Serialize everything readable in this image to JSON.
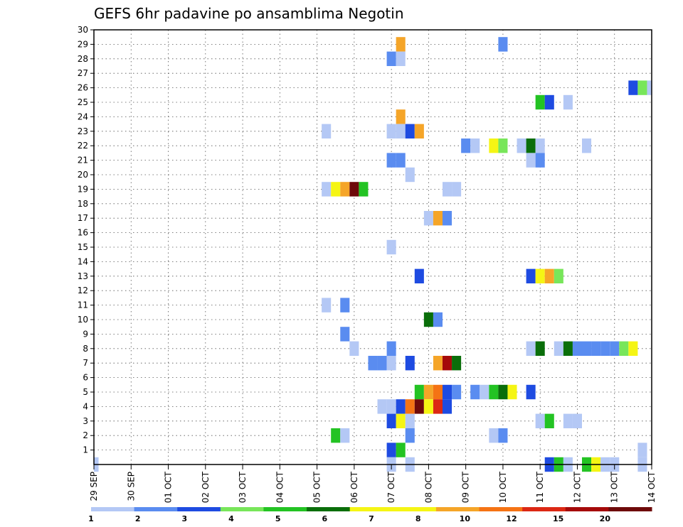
{
  "chart_data": {
    "type": "heatmap",
    "title": "GEFS 6hr padavine po ansamblima Negotin",
    "xlabel": "",
    "ylabel": "",
    "x_tick_labels": [
      "29 SEP",
      "30 SEP",
      "01 OCT",
      "02 OCT",
      "03 OCT",
      "04 OCT",
      "05 OCT",
      "06 OCT",
      "07 OCT",
      "08 OCT",
      "09 OCT",
      "10 OCT",
      "11 OCT",
      "12 OCT",
      "13 OCT",
      "14 OCT"
    ],
    "y_tick_labels": [
      "1",
      "2",
      "3",
      "4",
      "5",
      "6",
      "7",
      "8",
      "9",
      "10",
      "11",
      "12",
      "13",
      "14",
      "15",
      "16",
      "17",
      "18",
      "19",
      "20",
      "21",
      "22",
      "23",
      "24",
      "25",
      "26",
      "27",
      "28",
      "29",
      "30"
    ],
    "xlim": [
      0,
      60
    ],
    "ylim": [
      0,
      30
    ],
    "grid": true,
    "colorbar": {
      "position": "bottom",
      "labels": [
        "1",
        "2",
        "3",
        "4",
        "5",
        "6",
        "7",
        "8",
        "10",
        "12",
        "15",
        "20"
      ],
      "colors": [
        "#b4c8f5",
        "#5a8cf0",
        "#1e4be1",
        "#78e65a",
        "#23c323",
        "#0a6e0a",
        "#f5f514",
        "#f5f514",
        "#f5a528",
        "#f57314",
        "#dc2814",
        "#a50a0a",
        "#6e0a0a"
      ]
    },
    "cells": [
      {
        "x": 0,
        "y": 0,
        "level": 0
      },
      {
        "x": 33,
        "y": 29,
        "level": 8
      },
      {
        "x": 44,
        "y": 29,
        "level": 1
      },
      {
        "x": 32,
        "y": 28,
        "level": 1
      },
      {
        "x": 33,
        "y": 28,
        "level": 0
      },
      {
        "x": 58,
        "y": 26,
        "level": 2
      },
      {
        "x": 59,
        "y": 26,
        "level": 3
      },
      {
        "x": 60,
        "y": 26,
        "level": 0
      },
      {
        "x": 48,
        "y": 25,
        "level": 4
      },
      {
        "x": 49,
        "y": 25,
        "level": 2
      },
      {
        "x": 51,
        "y": 25,
        "level": 0
      },
      {
        "x": 33,
        "y": 24,
        "level": 8
      },
      {
        "x": 25,
        "y": 23,
        "level": 0
      },
      {
        "x": 32,
        "y": 23,
        "level": 0
      },
      {
        "x": 33,
        "y": 23,
        "level": 0
      },
      {
        "x": 34,
        "y": 23,
        "level": 2
      },
      {
        "x": 35,
        "y": 23,
        "level": 8
      },
      {
        "x": 40,
        "y": 22,
        "level": 1
      },
      {
        "x": 41,
        "y": 22,
        "level": 0
      },
      {
        "x": 43,
        "y": 22,
        "level": 6
      },
      {
        "x": 44,
        "y": 22,
        "level": 3
      },
      {
        "x": 46,
        "y": 22,
        "level": 0
      },
      {
        "x": 47,
        "y": 22,
        "level": 5
      },
      {
        "x": 48,
        "y": 22,
        "level": 0
      },
      {
        "x": 53,
        "y": 22,
        "level": 0
      },
      {
        "x": 32,
        "y": 21,
        "level": 1
      },
      {
        "x": 33,
        "y": 21,
        "level": 1
      },
      {
        "x": 47,
        "y": 21,
        "level": 0
      },
      {
        "x": 48,
        "y": 21,
        "level": 1
      },
      {
        "x": 34,
        "y": 20,
        "level": 0
      },
      {
        "x": 25,
        "y": 19,
        "level": 0
      },
      {
        "x": 26,
        "y": 19,
        "level": 6
      },
      {
        "x": 27,
        "y": 19,
        "level": 8
      },
      {
        "x": 28,
        "y": 19,
        "level": 12
      },
      {
        "x": 29,
        "y": 19,
        "level": 4
      },
      {
        "x": 38,
        "y": 19,
        "level": 0
      },
      {
        "x": 39,
        "y": 19,
        "level": 0
      },
      {
        "x": 36,
        "y": 17,
        "level": 0
      },
      {
        "x": 37,
        "y": 17,
        "level": 8
      },
      {
        "x": 38,
        "y": 17,
        "level": 1
      },
      {
        "x": 32,
        "y": 15,
        "level": 0
      },
      {
        "x": 35,
        "y": 13,
        "level": 2
      },
      {
        "x": 47,
        "y": 13,
        "level": 2
      },
      {
        "x": 48,
        "y": 13,
        "level": 6
      },
      {
        "x": 49,
        "y": 13,
        "level": 8
      },
      {
        "x": 50,
        "y": 13,
        "level": 3
      },
      {
        "x": 25,
        "y": 11,
        "level": 0
      },
      {
        "x": 27,
        "y": 11,
        "level": 1
      },
      {
        "x": 36,
        "y": 10,
        "level": 5
      },
      {
        "x": 37,
        "y": 10,
        "level": 1
      },
      {
        "x": 27,
        "y": 9,
        "level": 1
      },
      {
        "x": 28,
        "y": 8,
        "level": 0
      },
      {
        "x": 32,
        "y": 8,
        "level": 1
      },
      {
        "x": 47,
        "y": 8,
        "level": 0
      },
      {
        "x": 48,
        "y": 8,
        "level": 5
      },
      {
        "x": 50,
        "y": 8,
        "level": 0
      },
      {
        "x": 51,
        "y": 8,
        "level": 5
      },
      {
        "x": 52,
        "y": 8,
        "level": 1
      },
      {
        "x": 53,
        "y": 8,
        "level": 1
      },
      {
        "x": 54,
        "y": 8,
        "level": 1
      },
      {
        "x": 55,
        "y": 8,
        "level": 1
      },
      {
        "x": 56,
        "y": 8,
        "level": 1
      },
      {
        "x": 57,
        "y": 8,
        "level": 3
      },
      {
        "x": 58,
        "y": 8,
        "level": 6
      },
      {
        "x": 30,
        "y": 7,
        "level": 1
      },
      {
        "x": 31,
        "y": 7,
        "level": 1
      },
      {
        "x": 32,
        "y": 7,
        "level": 0
      },
      {
        "x": 34,
        "y": 7,
        "level": 2
      },
      {
        "x": 37,
        "y": 7,
        "level": 8
      },
      {
        "x": 38,
        "y": 7,
        "level": 11
      },
      {
        "x": 39,
        "y": 7,
        "level": 5
      },
      {
        "x": 35,
        "y": 5,
        "level": 4
      },
      {
        "x": 36,
        "y": 5,
        "level": 8
      },
      {
        "x": 37,
        "y": 5,
        "level": 9
      },
      {
        "x": 38,
        "y": 5,
        "level": 2
      },
      {
        "x": 39,
        "y": 5,
        "level": 1
      },
      {
        "x": 41,
        "y": 5,
        "level": 1
      },
      {
        "x": 42,
        "y": 5,
        "level": 0
      },
      {
        "x": 43,
        "y": 5,
        "level": 4
      },
      {
        "x": 44,
        "y": 5,
        "level": 5
      },
      {
        "x": 45,
        "y": 5,
        "level": 6
      },
      {
        "x": 47,
        "y": 5,
        "level": 2
      },
      {
        "x": 31,
        "y": 4,
        "level": 0
      },
      {
        "x": 32,
        "y": 4,
        "level": 0
      },
      {
        "x": 33,
        "y": 4,
        "level": 2
      },
      {
        "x": 34,
        "y": 4,
        "level": 9
      },
      {
        "x": 35,
        "y": 4,
        "level": 12
      },
      {
        "x": 36,
        "y": 4,
        "level": 7
      },
      {
        "x": 37,
        "y": 4,
        "level": 10
      },
      {
        "x": 38,
        "y": 4,
        "level": 2
      },
      {
        "x": 32,
        "y": 3,
        "level": 2
      },
      {
        "x": 33,
        "y": 3,
        "level": 6
      },
      {
        "x": 34,
        "y": 3,
        "level": 0
      },
      {
        "x": 48,
        "y": 3,
        "level": 0
      },
      {
        "x": 49,
        "y": 3,
        "level": 4
      },
      {
        "x": 51,
        "y": 3,
        "level": 0
      },
      {
        "x": 52,
        "y": 3,
        "level": 0
      },
      {
        "x": 26,
        "y": 2,
        "level": 4
      },
      {
        "x": 27,
        "y": 2,
        "level": 0
      },
      {
        "x": 34,
        "y": 2,
        "level": 1
      },
      {
        "x": 43,
        "y": 2,
        "level": 0
      },
      {
        "x": 44,
        "y": 2,
        "level": 1
      },
      {
        "x": 32,
        "y": 1,
        "level": 2
      },
      {
        "x": 33,
        "y": 1,
        "level": 4
      },
      {
        "x": 59,
        "y": 1,
        "level": 0
      },
      {
        "x": 32,
        "y": 0,
        "level": 0
      },
      {
        "x": 34,
        "y": 0,
        "level": 0
      },
      {
        "x": 49,
        "y": 0,
        "level": 2
      },
      {
        "x": 50,
        "y": 0,
        "level": 4
      },
      {
        "x": 51,
        "y": 0,
        "level": 0
      },
      {
        "x": 53,
        "y": 0,
        "level": 4
      },
      {
        "x": 54,
        "y": 0,
        "level": 6
      },
      {
        "x": 55,
        "y": 0,
        "level": 0
      },
      {
        "x": 56,
        "y": 0,
        "level": 0
      },
      {
        "x": 59,
        "y": 0,
        "level": 0
      }
    ]
  }
}
